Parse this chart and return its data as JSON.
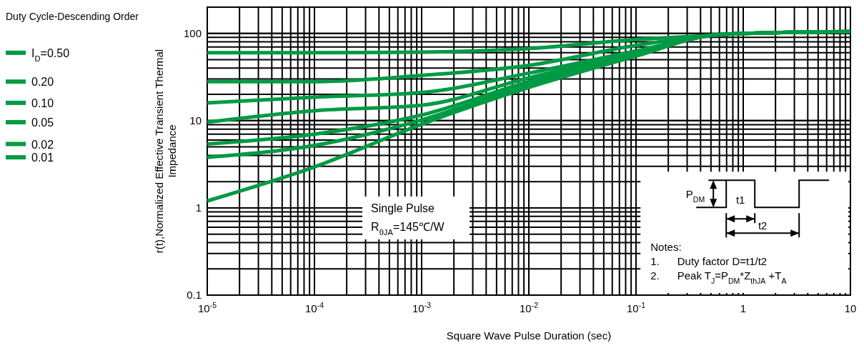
{
  "chart_data": {
    "type": "line",
    "xlabel": "Square Wave Pulse Duration (sec)",
    "ylabel": "r(t),Normalized Effective Transient Thermal Impedance",
    "legend_title": "Duty Cycle-Descending Order",
    "log": "xy",
    "grid": true,
    "legend": "left",
    "line_style": "solid",
    "marker": "none",
    "x": [
      1e-05,
      0.0001,
      0.001,
      0.01,
      0.1,
      0.5,
      1,
      10
    ],
    "xlim": [
      1e-05,
      10
    ],
    "ylim": [
      0.1,
      200
    ],
    "xticks": [
      {
        "value": 1e-05,
        "label": "10$^{-5}$"
      },
      {
        "value": 0.0001,
        "label": "10$^{-4}$"
      },
      {
        "value": 0.001,
        "label": "10$^{-3}$"
      },
      {
        "value": 0.01,
        "label": "10$^{-2}$"
      },
      {
        "value": 0.1,
        "label": "10$^{-1}$"
      },
      1,
      10
    ],
    "yticks": [
      0.1,
      1,
      10,
      100
    ],
    "series": [
      {
        "name": "I$_{D}$=0.50",
        "color": "#009a44",
        "values": [
          60,
          60,
          61,
          67,
          85,
          95,
          100,
          105
        ]
      },
      {
        "name": "0.20",
        "color": "#009a44",
        "values": [
          28,
          28,
          33,
          43,
          73,
          95,
          100,
          105
        ]
      },
      {
        "name": "0.10",
        "color": "#009a44",
        "values": [
          16,
          18.6,
          21,
          35,
          63,
          95,
          100,
          105
        ]
      },
      {
        "name": "0.05",
        "color": "#009a44",
        "values": [
          9.6,
          13,
          15,
          31,
          60,
          95,
          100,
          105
        ]
      },
      {
        "name": "0.02",
        "color": "#009a44",
        "values": [
          5.4,
          7,
          11.6,
          28,
          58,
          95,
          100,
          105
        ]
      },
      {
        "name": "0.01",
        "color": "#009a44",
        "values": [
          3.8,
          5.2,
          10.2,
          26,
          56,
          95,
          100,
          105
        ]
      },
      {
        "color": "#009a44",
        "values": [
          1.2,
          2.95,
          9.1,
          24,
          55,
          95,
          100,
          105
        ]
      }
    ],
    "annotations": [
      "Single Pulse",
      "R$_{θJA}$=145℃/W",
      "Notes:",
      "1.      Duty factor D=t1/t2",
      "2.      Peak T$_{J}$=P$_{DM}$*Z$_{thJA}$ +T$_{A}$",
      "P$_{DM}$",
      "t1",
      "t2"
    ]
  }
}
